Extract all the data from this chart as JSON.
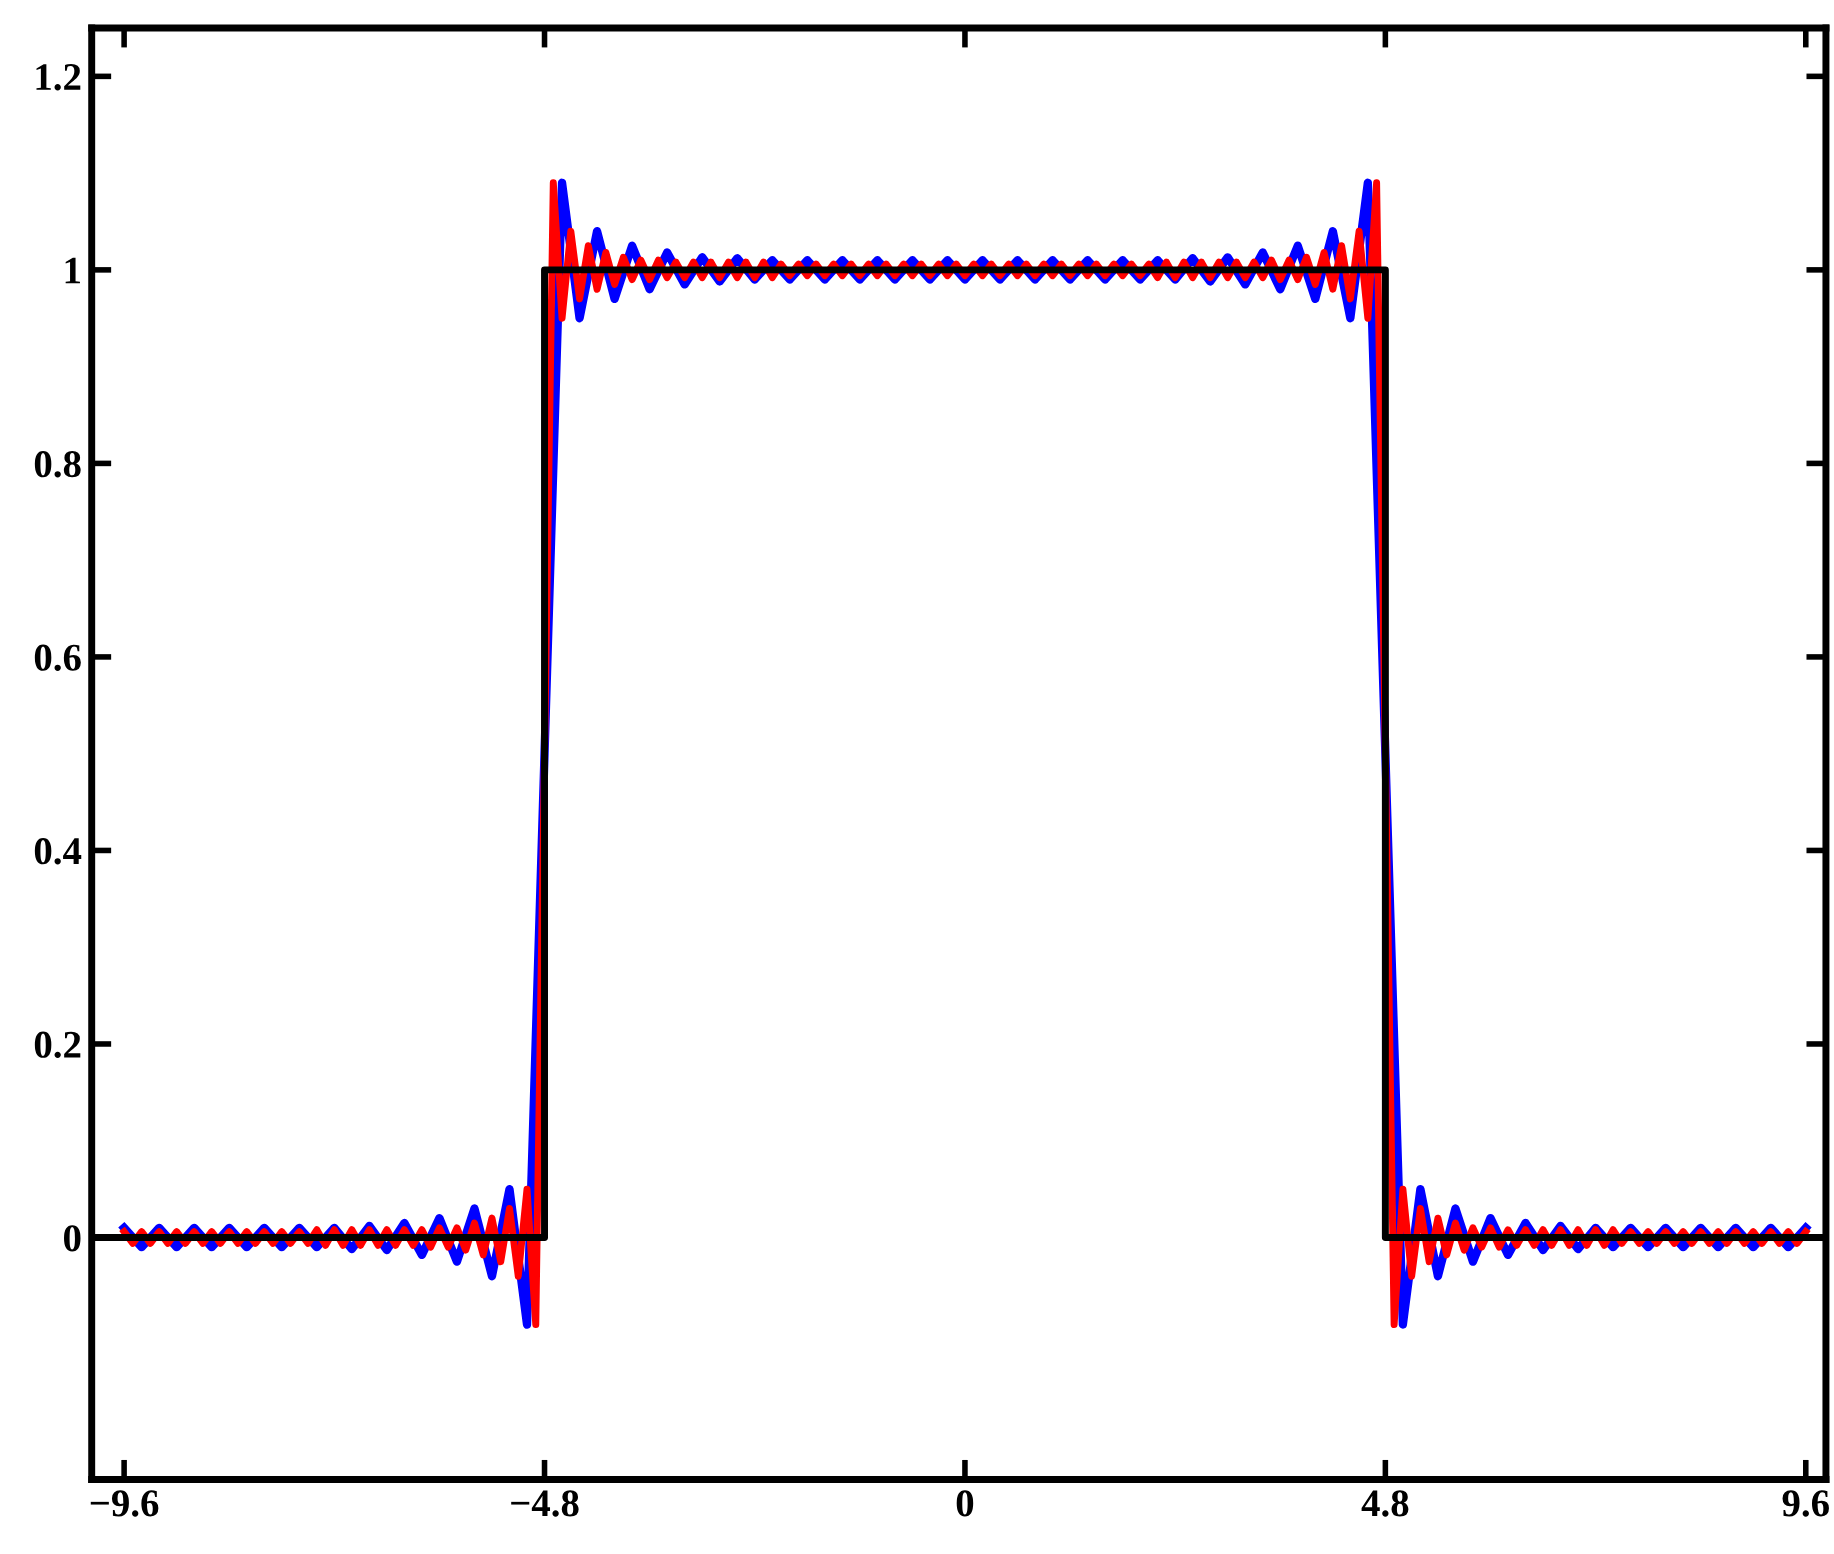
{
  "chart_data": {
    "type": "line",
    "xlim": [
      -9.97,
      9.83
    ],
    "ylim": [
      -0.25,
      1.25
    ],
    "xticks": [
      {
        "value": -9.6,
        "label": "−9.6"
      },
      {
        "value": -4.8,
        "label": "−4.8"
      },
      0,
      4.8,
      9.6
    ],
    "yticks": [
      0,
      0.2,
      0.4,
      0.6,
      0.8,
      1,
      1.2
    ],
    "grid": false,
    "legend": false,
    "marker": "none",
    "line_style": "solid",
    "series": [
      {
        "color": "#0000ff",
        "x": [
          -9.6,
          -9.4,
          -9.2,
          -9.0,
          -8.8,
          -8.6,
          -8.4,
          -8.2,
          -8.0,
          -7.8,
          -7.6,
          -7.4,
          -7.2,
          -7.0,
          -6.8,
          -6.6,
          -6.4,
          -6.2,
          -6.0,
          -5.8,
          -5.6,
          -5.4,
          -5.2,
          -5.0,
          -4.8,
          -4.6,
          -4.4,
          -4.2,
          -4.0,
          -3.8,
          -3.6,
          -3.4,
          -3.2,
          -3.0,
          -2.8,
          -2.6,
          -2.4,
          -2.2,
          -2.0,
          -1.8,
          -1.6,
          -1.4,
          -1.2,
          -1.0,
          -0.8,
          -0.6,
          -0.4,
          -0.2,
          0.0,
          0.2,
          0.4,
          0.6,
          0.8,
          1.0,
          1.2,
          1.4,
          1.6,
          1.8,
          2.0,
          2.2,
          2.4,
          2.6,
          2.8,
          3.0,
          3.2,
          3.4,
          3.6,
          3.8,
          4.0,
          4.2,
          4.4,
          4.6,
          4.8,
          5.0,
          5.2,
          5.4,
          5.6,
          5.8,
          6.0,
          6.2,
          6.4,
          6.6,
          6.8,
          7.0,
          7.2,
          7.4,
          7.6,
          7.8,
          8.0,
          8.2,
          8.4,
          8.6,
          8.8,
          9.0,
          9.2,
          9.4,
          9.6
        ],
        "values": [
          0.01,
          -0.01,
          0.01,
          -0.01,
          0.01,
          -0.01,
          0.01,
          -0.01,
          0.01,
          -0.01,
          0.01,
          -0.01,
          0.01,
          -0.012,
          0.012,
          -0.013,
          0.015,
          -0.018,
          0.02,
          -0.025,
          0.03,
          -0.04,
          0.05,
          -0.09,
          0.5,
          1.09,
          0.95,
          1.04,
          0.97,
          1.025,
          0.98,
          1.018,
          0.985,
          1.013,
          0.988,
          1.012,
          0.99,
          1.01,
          0.99,
          1.01,
          0.99,
          1.01,
          0.99,
          1.01,
          0.99,
          1.01,
          0.99,
          1.01,
          0.99,
          1.01,
          0.99,
          1.01,
          0.99,
          1.01,
          0.99,
          1.01,
          0.99,
          1.01,
          0.99,
          1.01,
          0.99,
          1.012,
          0.988,
          1.013,
          0.985,
          1.018,
          0.98,
          1.025,
          0.97,
          1.04,
          0.95,
          1.09,
          0.5,
          -0.09,
          0.05,
          -0.04,
          0.03,
          -0.025,
          0.02,
          -0.018,
          0.015,
          -0.013,
          0.012,
          -0.012,
          0.01,
          -0.01,
          0.01,
          -0.01,
          0.01,
          -0.01,
          0.01,
          -0.01,
          0.01,
          -0.01,
          0.01,
          -0.01,
          0.01
        ]
      },
      {
        "color": "#ff0000",
        "x": [
          -9.6,
          -9.5,
          -9.4,
          -9.3,
          -9.2,
          -9.1,
          -9.0,
          -8.9,
          -8.8,
          -8.7,
          -8.6,
          -8.5,
          -8.4,
          -8.3,
          -8.2,
          -8.1,
          -8.0,
          -7.9,
          -7.8,
          -7.7,
          -7.6,
          -7.5,
          -7.4,
          -7.3,
          -7.2,
          -7.1,
          -7.0,
          -6.9,
          -6.8,
          -6.7,
          -6.6,
          -6.5,
          -6.4,
          -6.3,
          -6.2,
          -6.1,
          -6.0,
          -5.9,
          -5.8,
          -5.7,
          -5.6,
          -5.5,
          -5.4,
          -5.3,
          -5.2,
          -5.1,
          -5.0,
          -4.9,
          -4.8,
          -4.7,
          -4.6,
          -4.5,
          -4.4,
          -4.3,
          -4.2,
          -4.1,
          -4.0,
          -3.9,
          -3.8,
          -3.7,
          -3.6,
          -3.5,
          -3.4,
          -3.3,
          -3.2,
          -3.1,
          -3.0,
          -2.9,
          -2.8,
          -2.7,
          -2.6,
          -2.5,
          -2.4,
          -2.3,
          -2.2,
          -2.1,
          -2.0,
          -1.9,
          -1.8,
          -1.7,
          -1.6,
          -1.5,
          -1.4,
          -1.3,
          -1.2,
          -1.1,
          -1.0,
          -0.9,
          -0.8,
          -0.7,
          -0.6,
          -0.5,
          -0.4,
          -0.3,
          -0.2,
          -0.1,
          0.0,
          0.1,
          0.2,
          0.3,
          0.4,
          0.5,
          0.6,
          0.7,
          0.8,
          0.9,
          1.0,
          1.1,
          1.2,
          1.3,
          1.4,
          1.5,
          1.6,
          1.7,
          1.8,
          1.9,
          2.0,
          2.1,
          2.2,
          2.3,
          2.4,
          2.5,
          2.6,
          2.7,
          2.8,
          2.9,
          3.0,
          3.1,
          3.2,
          3.3,
          3.4,
          3.5,
          3.6,
          3.7,
          3.8,
          3.9,
          4.0,
          4.1,
          4.2,
          4.3,
          4.4,
          4.5,
          4.6,
          4.7,
          4.8,
          4.9,
          5.0,
          5.1,
          5.2,
          5.3,
          5.4,
          5.5,
          5.6,
          5.7,
          5.8,
          5.9,
          6.0,
          6.1,
          6.2,
          6.3,
          6.4,
          6.5,
          6.6,
          6.7,
          6.8,
          6.9,
          7.0,
          7.1,
          7.2,
          7.3,
          7.4,
          7.5,
          7.6,
          7.7,
          7.8,
          7.9,
          8.0,
          8.1,
          8.2,
          8.3,
          8.4,
          8.5,
          8.6,
          8.7,
          8.8,
          8.9,
          9.0,
          9.1,
          9.2,
          9.3,
          9.4,
          9.5,
          9.6
        ],
        "values": [
          0.006,
          -0.006,
          0.006,
          -0.006,
          0.006,
          -0.006,
          0.006,
          -0.006,
          0.006,
          -0.006,
          0.006,
          -0.006,
          0.006,
          -0.006,
          0.006,
          -0.006,
          0.006,
          -0.006,
          0.006,
          -0.006,
          0.006,
          -0.006,
          0.008,
          -0.008,
          0.008,
          -0.008,
          0.008,
          -0.008,
          0.008,
          -0.008,
          0.008,
          -0.008,
          0.008,
          -0.008,
          0.008,
          -0.01,
          0.01,
          -0.01,
          0.01,
          -0.013,
          0.015,
          -0.018,
          0.02,
          -0.025,
          0.03,
          -0.04,
          0.05,
          -0.09,
          0.5,
          1.09,
          0.95,
          1.04,
          0.97,
          1.025,
          0.98,
          1.018,
          0.985,
          1.013,
          0.99,
          1.01,
          0.99,
          1.01,
          0.992,
          1.008,
          0.992,
          1.008,
          0.992,
          1.008,
          0.992,
          1.008,
          0.992,
          1.008,
          0.992,
          1.008,
          0.992,
          1.006,
          0.994,
          1.006,
          0.994,
          1.006,
          0.994,
          1.006,
          0.994,
          1.006,
          0.994,
          1.006,
          0.994,
          1.006,
          0.994,
          1.006,
          0.994,
          1.006,
          0.994,
          1.006,
          0.994,
          1.006,
          0.994,
          1.006,
          0.994,
          1.006,
          0.994,
          1.006,
          0.994,
          1.006,
          0.994,
          1.006,
          0.994,
          1.006,
          0.994,
          1.006,
          0.994,
          1.006,
          0.994,
          1.006,
          0.994,
          1.006,
          0.994,
          1.006,
          0.992,
          1.008,
          0.992,
          1.008,
          0.992,
          1.008,
          0.992,
          1.008,
          0.992,
          1.008,
          0.992,
          1.008,
          0.992,
          1.01,
          0.99,
          1.01,
          0.99,
          1.013,
          0.985,
          1.018,
          0.98,
          1.025,
          0.97,
          1.04,
          0.95,
          1.09,
          0.5,
          -0.09,
          0.05,
          -0.04,
          0.03,
          -0.025,
          0.02,
          -0.018,
          0.015,
          -0.013,
          0.01,
          -0.01,
          0.01,
          -0.01,
          0.008,
          -0.008,
          0.008,
          -0.008,
          0.008,
          -0.008,
          0.008,
          -0.008,
          0.008,
          -0.008,
          0.008,
          -0.008,
          0.008,
          -0.006,
          0.006,
          -0.006,
          0.006,
          -0.006,
          0.006,
          -0.006,
          0.006,
          -0.006,
          0.006,
          -0.006,
          0.006,
          -0.006,
          0.006,
          -0.006,
          0.006,
          -0.006,
          0.006,
          -0.006,
          0.006,
          -0.006,
          0.006
        ]
      },
      {
        "color": "#000000",
        "x": [
          -9.9,
          -4.8,
          -4.8,
          4.8,
          4.8,
          9.8
        ],
        "values": [
          0,
          0,
          1,
          1,
          0,
          0
        ]
      }
    ]
  }
}
